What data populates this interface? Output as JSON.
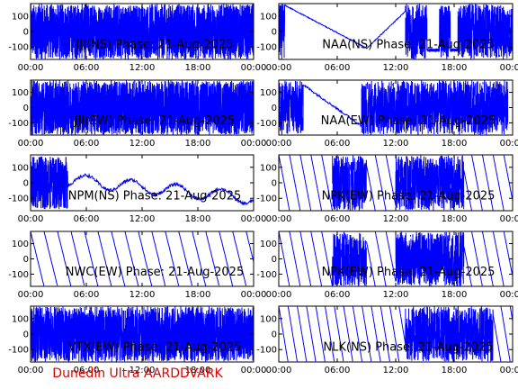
{
  "footer": {
    "text": "Dunedin Ultra AARDDVARK",
    "color": "#e00000"
  },
  "style": {
    "trace_color": "#0000ff",
    "axis_color": "#000000",
    "background": "#ffffff"
  },
  "chart_data": [
    {
      "type": "line",
      "title": "JJI(NS) Phase: 21-Aug-2025",
      "xlabel": "",
      "ylabel": "",
      "x_ticks": [
        "00:00",
        "06:00",
        "12:00",
        "18:00",
        "00:00"
      ],
      "xlim": [
        0,
        24
      ],
      "y_ticks": [
        -100,
        0,
        100
      ],
      "ylim": [
        -180,
        180
      ],
      "grid": false,
      "pattern": "dense"
    },
    {
      "type": "line",
      "title": "NAA(NS) Phase: 21-Aug-2025",
      "xlabel": "",
      "ylabel": "",
      "x_ticks": [
        "00:00",
        "06:00",
        "12:00",
        "18:00",
        "00:00"
      ],
      "xlim": [
        0,
        24
      ],
      "y_ticks": [
        -100,
        0,
        100
      ],
      "ylim": [
        -180,
        180
      ],
      "grid": false,
      "pattern": "naa_ns"
    },
    {
      "type": "line",
      "title": "JJI(EW) Phase: 21-Aug-2025",
      "xlabel": "",
      "ylabel": "",
      "x_ticks": [
        "00:00",
        "06:00",
        "12:00",
        "18:00",
        "00:00"
      ],
      "xlim": [
        0,
        24
      ],
      "y_ticks": [
        -100,
        0,
        100
      ],
      "ylim": [
        -180,
        180
      ],
      "grid": false,
      "pattern": "dense"
    },
    {
      "type": "line",
      "title": "NAA(EW) Phase: 21-Aug-2025",
      "xlabel": "",
      "ylabel": "",
      "x_ticks": [
        "00:00",
        "06:00",
        "12:00",
        "18:00",
        "00:00"
      ],
      "xlim": [
        0,
        24
      ],
      "y_ticks": [
        -100,
        0,
        100
      ],
      "ylim": [
        -180,
        180
      ],
      "grid": false,
      "pattern": "naa_ew"
    },
    {
      "type": "line",
      "title": "NPM(NS) Phase: 21-Aug-2025",
      "xlabel": "",
      "ylabel": "",
      "x_ticks": [
        "00:00",
        "06:00",
        "12:00",
        "18:00",
        "00:00"
      ],
      "xlim": [
        0,
        24
      ],
      "y_ticks": [
        -100,
        0,
        100
      ],
      "ylim": [
        -180,
        180
      ],
      "grid": false,
      "pattern": "npm"
    },
    {
      "type": "line",
      "title": "NPK(EW) Phase: 21-Aug-2025",
      "xlabel": "",
      "ylabel": "",
      "x_ticks": [
        "00:00",
        "06:00",
        "12:00",
        "18:00",
        "00:00"
      ],
      "xlim": [
        0,
        24
      ],
      "y_ticks": [
        -100,
        0,
        100
      ],
      "ylim": [
        -180,
        180
      ],
      "grid": false,
      "pattern": "sawtooth_dense"
    },
    {
      "type": "line",
      "title": "NWC(EW) Phase: 21-Aug-2025",
      "xlabel": "",
      "ylabel": "",
      "x_ticks": [
        "00:00",
        "06:00",
        "12:00",
        "18:00",
        "00:00"
      ],
      "xlim": [
        0,
        24
      ],
      "y_ticks": [
        -100,
        0,
        100
      ],
      "ylim": [
        -180,
        180
      ],
      "grid": false,
      "pattern": "sawtooth_slow"
    },
    {
      "type": "line",
      "title": "NPK(EW) Phase: 21-Aug-2025",
      "xlabel": "",
      "ylabel": "",
      "x_ticks": [
        "00:00",
        "06:00",
        "12:00",
        "18:00",
        "00:00"
      ],
      "xlim": [
        0,
        24
      ],
      "y_ticks": [
        -100,
        0,
        100
      ],
      "ylim": [
        -180,
        180
      ],
      "grid": false,
      "pattern": "sawtooth_dense"
    },
    {
      "type": "line",
      "title": "VTX(EW) Phase: 21-Aug-2025",
      "xlabel": "",
      "ylabel": "",
      "x_ticks": [
        "00:00",
        "06:00",
        "12:00",
        "18:00",
        "00:00"
      ],
      "xlim": [
        0,
        24
      ],
      "y_ticks": [
        -100,
        0,
        100
      ],
      "ylim": [
        -180,
        180
      ],
      "grid": false,
      "pattern": "dense"
    },
    {
      "type": "line",
      "title": "NLK(NS) Phase: 21-Aug-2025",
      "xlabel": "",
      "ylabel": "",
      "x_ticks": [
        "00:00",
        "06:00",
        "12:00",
        "18:00",
        "00:00"
      ],
      "xlim": [
        0,
        24
      ],
      "y_ticks": [
        -100,
        0,
        100
      ],
      "ylim": [
        -180,
        180
      ],
      "grid": false,
      "pattern": "nlk"
    }
  ]
}
